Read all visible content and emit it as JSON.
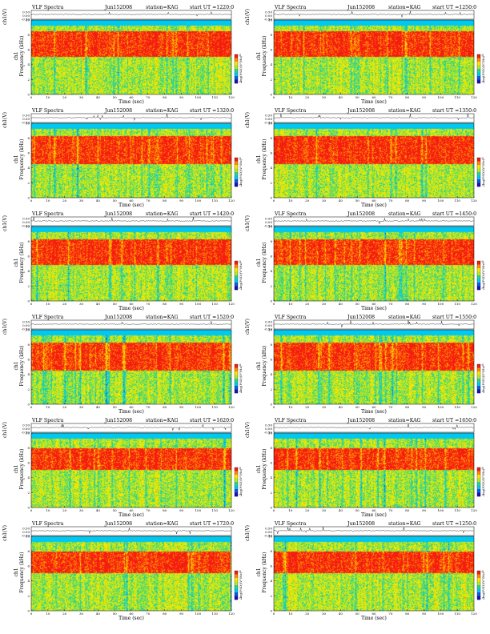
{
  "figure": {
    "colors": {
      "scale": [
        "#1a10b8",
        "#0b5de0",
        "#00c8f0",
        "#2fd38a",
        "#b8e820",
        "#ffe600",
        "#ff8c00",
        "#f41e10"
      ],
      "background": "#ffffff",
      "trace": "#000000"
    }
  },
  "chart_data": [
    {
      "type": "heatmap",
      "panel": "r1c1",
      "header": {
        "name": "VLF Spectra",
        "date": "Jun152008",
        "station": "station=KAG",
        "start": "start UT =1220:0"
      },
      "waveform_label": "ch1(V)",
      "waveform_ticks": [
        "0.50",
        "0.00",
        "-0.50"
      ],
      "waveform_ylim": [
        -0.5,
        0.5
      ],
      "ylabel_top": "ch1",
      "ylabel": "Frequency (kHz)",
      "xlabel": "Time (sec)",
      "xticks": [
        "0",
        "10",
        "20",
        "30",
        "40",
        "50",
        "60",
        "70",
        "80",
        "90",
        "100",
        "110",
        "120"
      ],
      "xlim": [
        0,
        120
      ],
      "yticks": [
        "0",
        "2",
        "4",
        "6",
        "8",
        "10"
      ],
      "ylim": [
        0,
        10
      ],
      "colorbar_label": "log(PSD)(V²/Hz)",
      "colorbar_ticks": [
        "0",
        "-1"
      ],
      "spectral_bands": [
        {
          "from_khz": 9.3,
          "to_khz": 10,
          "level": "low"
        },
        {
          "from_khz": 5.0,
          "to_khz": 8.5,
          "level": "high"
        },
        {
          "from_khz": 0,
          "to_khz": 5.0,
          "level": "medium"
        }
      ]
    },
    {
      "type": "heatmap",
      "panel": "r1c2",
      "header": {
        "name": "VLF Spectra",
        "date": "Jun152008",
        "station": "station=KAG",
        "start": "start UT =1250:0"
      },
      "waveform_label": "ch1(V)",
      "waveform_ticks": [
        "0.50",
        "0.00",
        "-0.50"
      ],
      "waveform_ylim": [
        -0.5,
        0.5
      ],
      "ylabel_top": "ch1",
      "ylabel": "Frequency (kHz)",
      "xlabel": "Time (sec)",
      "xticks": [
        "0",
        "10",
        "20",
        "30",
        "40",
        "50",
        "60",
        "70",
        "80",
        "90",
        "100",
        "110",
        "120"
      ],
      "xlim": [
        0,
        120
      ],
      "yticks": [
        "0",
        "2",
        "4",
        "6",
        "8",
        "10"
      ],
      "ylim": [
        0,
        10
      ],
      "colorbar_label": "log(PSD)(V²/Hz)",
      "colorbar_ticks": [
        "0",
        "-1"
      ],
      "spectral_bands": [
        {
          "from_khz": 9.3,
          "to_khz": 10,
          "level": "low"
        },
        {
          "from_khz": 5.0,
          "to_khz": 8.5,
          "level": "high"
        },
        {
          "from_khz": 0,
          "to_khz": 5.0,
          "level": "medium"
        }
      ]
    },
    {
      "type": "heatmap",
      "panel": "r2c1",
      "header": {
        "name": "VLF Spectra",
        "date": "Jun152008",
        "station": "station=KAG",
        "start": "start UT =1320:0"
      },
      "waveform_label": "ch1(V)",
      "waveform_ticks": [
        "0.50",
        "0.00",
        "-0.50"
      ],
      "waveform_ylim": [
        -0.5,
        0.5
      ],
      "ylabel_top": "ch1",
      "ylabel": "Frequency (kHz)",
      "xlabel": "Time (sec)",
      "xticks": [
        "0",
        "10",
        "20",
        "30",
        "40",
        "50",
        "60",
        "70",
        "80",
        "90",
        "100",
        "110",
        "120"
      ],
      "xlim": [
        0,
        120
      ],
      "yticks": [
        "0",
        "2",
        "4",
        "6",
        "8",
        "10"
      ],
      "ylim": [
        0,
        10
      ],
      "colorbar_label": "log(PSD)(V²/Hz)",
      "colorbar_ticks": [
        "0",
        "-1"
      ],
      "spectral_bands": [
        {
          "from_khz": 9.3,
          "to_khz": 10,
          "level": "low"
        },
        {
          "from_khz": 4.5,
          "to_khz": 8.3,
          "level": "high"
        },
        {
          "from_khz": 0,
          "to_khz": 4.5,
          "level": "medium"
        }
      ]
    },
    {
      "type": "heatmap",
      "panel": "r2c2",
      "header": {
        "name": "VLF Spectra",
        "date": "Jun152008",
        "station": "station=KAG",
        "start": "start UT =1350:0"
      },
      "waveform_label": "ch1(V)",
      "waveform_ticks": [
        "0.50",
        "0.00",
        "-0.50"
      ],
      "waveform_ylim": [
        -0.5,
        0.5
      ],
      "ylabel_top": "ch1",
      "ylabel": "Frequency (kHz)",
      "xlabel": "Time (sec)",
      "xticks": [
        "0",
        "10",
        "20",
        "30",
        "40",
        "50",
        "60",
        "70",
        "80",
        "90",
        "100",
        "110",
        "120"
      ],
      "xlim": [
        0,
        120
      ],
      "yticks": [
        "0",
        "2",
        "4",
        "6",
        "8",
        "10"
      ],
      "ylim": [
        0,
        10
      ],
      "colorbar_label": "log(PSD)(V²/Hz)",
      "colorbar_ticks": [
        "0",
        "-1"
      ],
      "spectral_bands": [
        {
          "from_khz": 9.3,
          "to_khz": 10,
          "level": "low"
        },
        {
          "from_khz": 4.5,
          "to_khz": 8.3,
          "level": "high"
        },
        {
          "from_khz": 0,
          "to_khz": 4.5,
          "level": "medium"
        }
      ]
    },
    {
      "type": "heatmap",
      "panel": "r3c1",
      "header": {
        "name": "VLF Spectra",
        "date": "Jun152008",
        "station": "station=KAG",
        "start": "start UT =1420:0"
      },
      "waveform_label": "ch1(V)",
      "waveform_ticks": [
        "0.50",
        "0.00",
        "-0.50"
      ],
      "waveform_ylim": [
        -0.5,
        0.5
      ],
      "ylabel_top": "ch1",
      "ylabel": "Frequency (kHz)",
      "xlabel": "Time (sec)",
      "xticks": [
        "0",
        "10",
        "20",
        "30",
        "40",
        "50",
        "60",
        "70",
        "80",
        "90",
        "100",
        "110",
        "120"
      ],
      "xlim": [
        0,
        120
      ],
      "yticks": [
        "0",
        "2",
        "4",
        "6",
        "8",
        "10"
      ],
      "ylim": [
        0,
        10
      ],
      "colorbar_label": "log(PSD)(V²/Hz)",
      "colorbar_ticks": [
        "0",
        "-1"
      ],
      "spectral_bands": [
        {
          "from_khz": 9.3,
          "to_khz": 10,
          "level": "low"
        },
        {
          "from_khz": 4.8,
          "to_khz": 8.3,
          "level": "high"
        },
        {
          "from_khz": 0,
          "to_khz": 4.8,
          "level": "medium"
        }
      ]
    },
    {
      "type": "heatmap",
      "panel": "r3c2",
      "header": {
        "name": "VLF Spectra",
        "date": "Jun152008",
        "station": "station=KAG",
        "start": "start UT =1450:0"
      },
      "waveform_label": "ch1(V)",
      "waveform_ticks": [
        "0.50",
        "0.00",
        "-0.50"
      ],
      "waveform_ylim": [
        -0.5,
        0.5
      ],
      "ylabel_top": "ch1",
      "ylabel": "Frequency (kHz)",
      "xlabel": "Time (sec)",
      "xticks": [
        "0",
        "10",
        "20",
        "30",
        "40",
        "50",
        "60",
        "70",
        "80",
        "90",
        "100",
        "110",
        "120"
      ],
      "xlim": [
        0,
        120
      ],
      "yticks": [
        "0",
        "2",
        "4",
        "6",
        "8",
        "10"
      ],
      "ylim": [
        0,
        10
      ],
      "colorbar_label": "log(PSD)(V²/Hz)",
      "colorbar_ticks": [
        "0",
        "-1"
      ],
      "spectral_bands": [
        {
          "from_khz": 9.3,
          "to_khz": 10,
          "level": "low"
        },
        {
          "from_khz": 4.8,
          "to_khz": 8.3,
          "level": "high"
        },
        {
          "from_khz": 0,
          "to_khz": 4.8,
          "level": "medium"
        }
      ]
    },
    {
      "type": "heatmap",
      "panel": "r4c1",
      "header": {
        "name": "VLF Spectra",
        "date": "Jun152008",
        "station": "station=KAG",
        "start": "start UT =1520:0"
      },
      "waveform_label": "ch1(V)",
      "waveform_ticks": [
        "0.50",
        "0.00",
        "-0.50"
      ],
      "waveform_ylim": [
        -0.5,
        0.5
      ],
      "ylabel_top": "ch1",
      "ylabel": "Frequency (kHz)",
      "xlabel": "Time (sec)",
      "xticks": [
        "0",
        "10",
        "20",
        "30",
        "40",
        "50",
        "60",
        "70",
        "80",
        "90",
        "100",
        "110",
        "120"
      ],
      "xlim": [
        0,
        120
      ],
      "yticks": [
        "0",
        "2",
        "4",
        "6",
        "8",
        "10"
      ],
      "ylim": [
        0,
        10
      ],
      "colorbar_label": "log(PSD)(V²/Hz)",
      "colorbar_ticks": [
        "0",
        "-1"
      ],
      "spectral_bands": [
        {
          "from_khz": 9.3,
          "to_khz": 10,
          "level": "low"
        },
        {
          "from_khz": 4.5,
          "to_khz": 8.3,
          "level": "high"
        },
        {
          "from_khz": 0,
          "to_khz": 4.5,
          "level": "medium"
        }
      ]
    },
    {
      "type": "heatmap",
      "panel": "r4c2",
      "header": {
        "name": "VLF Spectra",
        "date": "Jun152008",
        "station": "station=KAG",
        "start": "start UT =1550:0"
      },
      "waveform_label": "ch1(V)",
      "waveform_ticks": [
        "0.50",
        "0.00",
        "-0.50"
      ],
      "waveform_ylim": [
        -0.5,
        0.5
      ],
      "ylabel_top": "ch1",
      "ylabel": "Frequency (kHz)",
      "xlabel": "Time (sec)",
      "xticks": [
        "0",
        "10",
        "20",
        "30",
        "40",
        "50",
        "60",
        "70",
        "80",
        "90",
        "100",
        "110",
        "120"
      ],
      "xlim": [
        0,
        120
      ],
      "yticks": [
        "0",
        "2",
        "4",
        "6",
        "8",
        "10"
      ],
      "ylim": [
        0,
        10
      ],
      "colorbar_label": "log(PSD)(V²/Hz)",
      "colorbar_ticks": [
        "0",
        "-1"
      ],
      "spectral_bands": [
        {
          "from_khz": 9.3,
          "to_khz": 10,
          "level": "low"
        },
        {
          "from_khz": 4.5,
          "to_khz": 8.3,
          "level": "high"
        },
        {
          "from_khz": 0,
          "to_khz": 4.5,
          "level": "medium"
        }
      ]
    },
    {
      "type": "heatmap",
      "panel": "r5c1",
      "header": {
        "name": "VLF Spectra",
        "date": "Jun152008",
        "station": "station=KAG",
        "start": "start UT =1620:0"
      },
      "waveform_label": "ch1(V)",
      "waveform_ticks": [
        "0.50",
        "0.00",
        "-0.50"
      ],
      "waveform_ylim": [
        -0.5,
        0.5
      ],
      "ylabel_top": "ch1",
      "ylabel": "Frequency (kHz)",
      "xlabel": "Time (sec)",
      "xticks": [
        "0",
        "10",
        "20",
        "30",
        "40",
        "50",
        "60",
        "70",
        "80",
        "90",
        "100",
        "110",
        "120"
      ],
      "xlim": [
        0,
        120
      ],
      "yticks": [
        "0",
        "2",
        "4",
        "6",
        "8",
        "10"
      ],
      "ylim": [
        0,
        10
      ],
      "colorbar_label": "log(PSD)(V²/Hz)",
      "colorbar_ticks": [
        "0",
        "-1"
      ],
      "spectral_bands": [
        {
          "from_khz": 9.3,
          "to_khz": 10,
          "level": "low"
        },
        {
          "from_khz": 5.0,
          "to_khz": 8.0,
          "level": "high"
        },
        {
          "from_khz": 0,
          "to_khz": 5.0,
          "level": "medium"
        }
      ]
    },
    {
      "type": "heatmap",
      "panel": "r5c2",
      "header": {
        "name": "VLF Spectra",
        "date": "Jun152008",
        "station": "station=KAG",
        "start": "start UT =1650:0"
      },
      "waveform_label": "ch1(V)",
      "waveform_ticks": [
        "0.50",
        "0.00",
        "-0.50"
      ],
      "waveform_ylim": [
        -0.5,
        0.5
      ],
      "ylabel_top": "ch1",
      "ylabel": "Frequency (kHz)",
      "xlabel": "Time (sec)",
      "xticks": [
        "0",
        "10",
        "20",
        "30",
        "40",
        "50",
        "60",
        "70",
        "80",
        "90",
        "100",
        "110",
        "120"
      ],
      "xlim": [
        0,
        120
      ],
      "yticks": [
        "0",
        "2",
        "4",
        "6",
        "8",
        "10"
      ],
      "ylim": [
        0,
        10
      ],
      "colorbar_label": "log(PSD)(V²/Hz)",
      "colorbar_ticks": [
        "0",
        "-1"
      ],
      "spectral_bands": [
        {
          "from_khz": 9.3,
          "to_khz": 10,
          "level": "low"
        },
        {
          "from_khz": 5.0,
          "to_khz": 8.0,
          "level": "high"
        },
        {
          "from_khz": 0,
          "to_khz": 5.0,
          "level": "medium"
        }
      ]
    },
    {
      "type": "heatmap",
      "panel": "r6c1",
      "header": {
        "name": "VLF Spectra",
        "date": "Jun152008",
        "station": "station=KAG",
        "start": "start UT =1720:0"
      },
      "waveform_label": "ch1(V)",
      "waveform_ticks": [
        "0.50",
        "0.00",
        "-0.50"
      ],
      "waveform_ylim": [
        -0.5,
        0.5
      ],
      "ylabel_top": "ch1",
      "ylabel": "Frequency (kHz)",
      "xlabel": "Time (sec)",
      "xticks": [
        "0",
        "10",
        "20",
        "30",
        "40",
        "50",
        "60",
        "70",
        "80",
        "90",
        "100",
        "110",
        "120"
      ],
      "xlim": [
        0,
        120
      ],
      "yticks": [
        "0",
        "2",
        "4",
        "6",
        "8",
        "10"
      ],
      "ylim": [
        0,
        10
      ],
      "colorbar_label": "log(PSD)(V²/Hz)",
      "colorbar_ticks": [
        "0",
        "-1"
      ],
      "spectral_bands": [
        {
          "from_khz": 9.3,
          "to_khz": 10,
          "level": "low"
        },
        {
          "from_khz": 5.0,
          "to_khz": 8.0,
          "level": "high"
        },
        {
          "from_khz": 0,
          "to_khz": 5.0,
          "level": "medium"
        }
      ]
    },
    {
      "type": "heatmap",
      "panel": "r6c2",
      "header": {
        "name": "VLF Spectra",
        "date": "Jun152008",
        "station": "station=KAG",
        "start": "start UT =1250:0"
      },
      "waveform_label": "ch1(V)",
      "waveform_ticks": [
        "0.50",
        "0.00",
        "-0.50"
      ],
      "waveform_ylim": [
        -0.5,
        0.5
      ],
      "ylabel_top": "ch1",
      "ylabel": "Frequency (kHz)",
      "xlabel": "Time (sec)",
      "xticks": [
        "0",
        "10",
        "20",
        "30",
        "40",
        "50",
        "60",
        "70",
        "80",
        "90",
        "100",
        "110",
        "120"
      ],
      "xlim": [
        0,
        120
      ],
      "yticks": [
        "0",
        "2",
        "4",
        "6",
        "8",
        "10"
      ],
      "ylim": [
        0,
        10
      ],
      "colorbar_label": "log(PSD)(V²/Hz)",
      "colorbar_ticks": [
        "0",
        "-1"
      ],
      "spectral_bands": [
        {
          "from_khz": 9.3,
          "to_khz": 10,
          "level": "low"
        },
        {
          "from_khz": 5.0,
          "to_khz": 8.0,
          "level": "high"
        },
        {
          "from_khz": 0,
          "to_khz": 5.0,
          "level": "medium"
        }
      ]
    }
  ]
}
